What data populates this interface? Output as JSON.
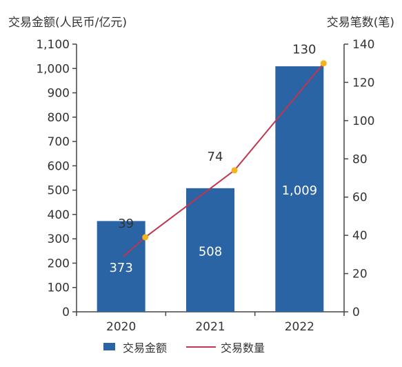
{
  "chart_data": {
    "type": "bar",
    "categories": [
      "2020",
      "2021",
      "2022"
    ],
    "left_axis_title": "交易金额(人民币/亿元)",
    "right_axis_title": "交易笔数(笔)",
    "y_left": {
      "min": 0,
      "max": 1100,
      "ticks": [
        "0",
        "100",
        "200",
        "300",
        "400",
        "500",
        "600",
        "700",
        "800",
        "900",
        "1,000",
        "1,100"
      ]
    },
    "y_right": {
      "min": 0,
      "max": 140,
      "ticks": [
        "0",
        "20",
        "40",
        "60",
        "80",
        "100",
        "120",
        "140"
      ]
    },
    "series": [
      {
        "name": "交易金额",
        "type": "bar",
        "axis": "left",
        "values": [
          373,
          508,
          1009
        ],
        "labels": [
          "373",
          "508",
          "1,009"
        ]
      },
      {
        "name": "交易数量",
        "type": "line",
        "axis": "right",
        "values": [
          39,
          74,
          130
        ],
        "labels": [
          "39",
          "74",
          "130"
        ]
      }
    ],
    "legend_position": "bottom",
    "grid": false
  },
  "colors": {
    "bar": "#2a64a4",
    "line": "#c0354f",
    "marker": "#f2b51d",
    "axis": "#444444"
  }
}
